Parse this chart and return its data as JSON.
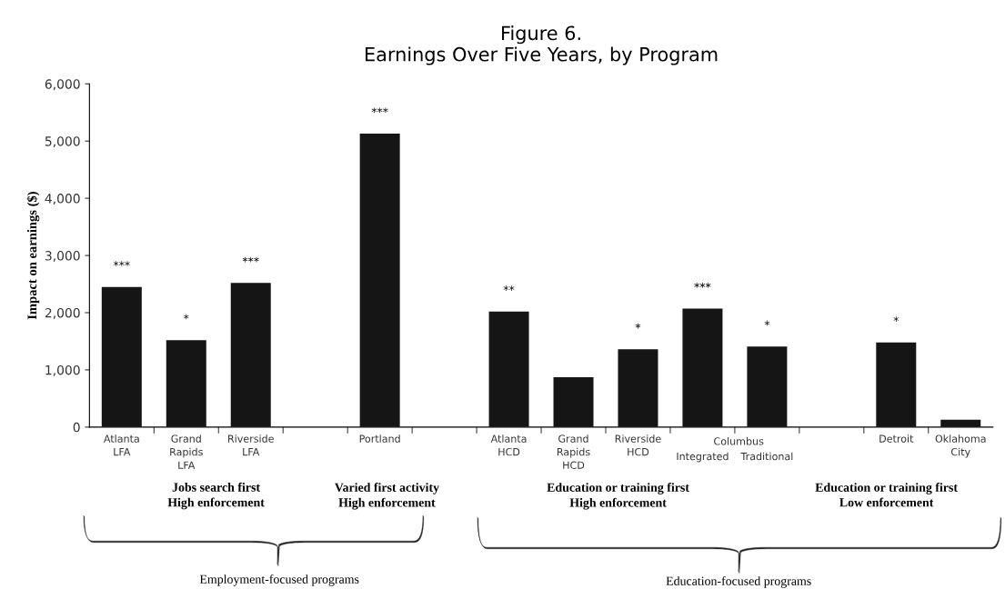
{
  "chart_data": {
    "type": "bar",
    "title": "Figure 6.\nEarnings Over Five Years, by Program",
    "ylabel": "Impact on earnings ($)",
    "categories": [
      "Atlanta\nLFA",
      "Grand\nRapids\nLFA",
      "Riverside\nLFA",
      null,
      "Portland",
      null,
      "Atlanta\nHCD",
      "Grand\nRapids\nHCD",
      "Riverside\nHCD",
      "Integrated",
      "Traditional",
      null,
      "Detroit",
      "Oklahoma\nCity"
    ],
    "values": [
      2450,
      1520,
      2520,
      null,
      5130,
      null,
      2020,
      870,
      1360,
      2070,
      1410,
      null,
      1480,
      130
    ],
    "color": "#151515",
    "ylim": [
      0,
      6000
    ],
    "yticks": [
      {
        "value": 0,
        "label": "0"
      },
      {
        "value": 1000,
        "label": "1,000"
      },
      {
        "value": 2000,
        "label": "2,000"
      },
      {
        "value": 3000,
        "label": "3,000"
      },
      {
        "value": 4000,
        "label": "4,000"
      },
      {
        "value": 5000,
        "label": "5,000"
      },
      {
        "value": 6000,
        "label": "6,000"
      }
    ],
    "grid": false,
    "annotations": [
      "Columbus",
      "Jobs search first\nHigh enforcement",
      "Varied first activity\nHigh enforcement",
      "Education or training first\nHigh enforcement",
      "Education or training first\nLow enforcement",
      "Employment-focused programs",
      "Education-focused programs",
      {
        "text": "***",
        "x": "Atlanta\nLFA",
        "y": 2450
      },
      {
        "text": "*",
        "x": "Grand\nRapids\nLFA",
        "y": 1520
      },
      {
        "text": "***",
        "x": "Riverside\nLFA",
        "y": 2520
      },
      {
        "text": "***",
        "x": "Portland",
        "y": 5130
      },
      {
        "text": "**",
        "x": "Atlanta\nHCD",
        "y": 2020
      },
      {
        "text": "*",
        "x": "Riverside\nHCD",
        "y": 1360
      },
      {
        "text": "***",
        "x": "Integrated",
        "y": 2070
      },
      {
        "text": "*",
        "x": "Traditional",
        "y": 1410
      },
      {
        "text": "*",
        "x": "Detroit",
        "y": 1480
      }
    ]
  }
}
